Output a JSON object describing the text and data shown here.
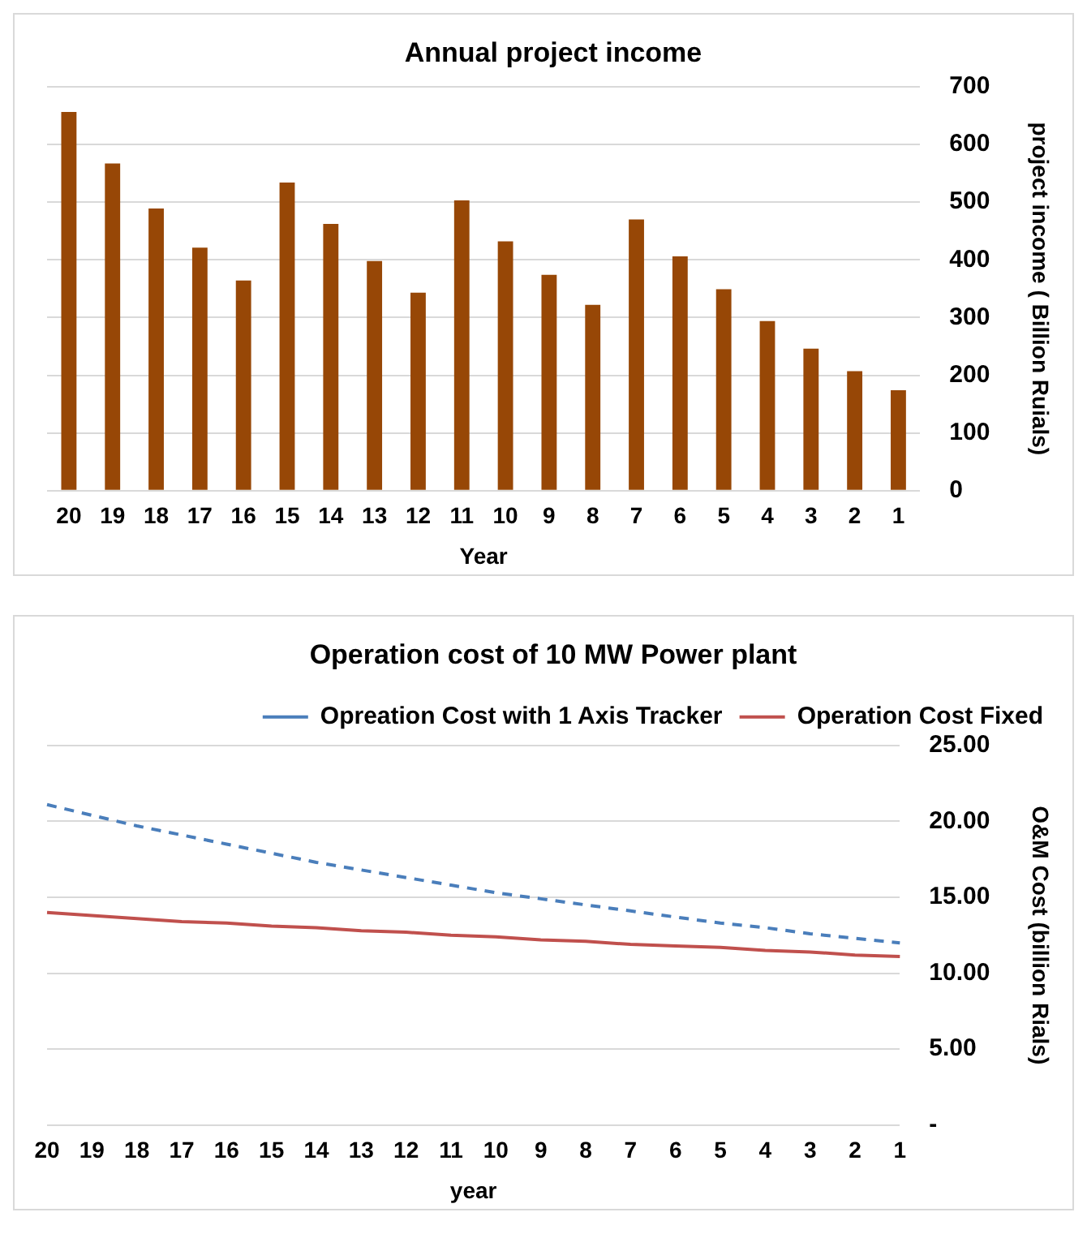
{
  "chart_data": [
    {
      "type": "bar",
      "title": "Annual project income",
      "xlabel": "Year",
      "ylabel": "project income ( Billion Ruials)",
      "categories": [
        "20",
        "19",
        "18",
        "17",
        "16",
        "15",
        "14",
        "13",
        "12",
        "11",
        "10",
        "9",
        "8",
        "7",
        "6",
        "5",
        "4",
        "3",
        "2",
        "1"
      ],
      "series": [
        {
          "color": "#974706",
          "values": [
            656,
            567,
            489,
            421,
            364,
            534,
            462,
            398,
            343,
            503,
            432,
            374,
            322,
            470,
            406,
            349,
            294,
            246,
            207,
            174
          ]
        }
      ],
      "ylim": [
        0,
        700
      ],
      "yticks": [
        0,
        100,
        200,
        300,
        400,
        500,
        600,
        700
      ],
      "grid": "y",
      "legend": false
    },
    {
      "type": "line",
      "title": "Operation cost of 10 MW Power plant",
      "xlabel": "year",
      "ylabel": "O&M Cost (billion Rials)",
      "categories": [
        "20",
        "19",
        "18",
        "17",
        "16",
        "15",
        "14",
        "13",
        "12",
        "11",
        "10",
        "9",
        "8",
        "7",
        "6",
        "5",
        "4",
        "3",
        "2",
        "1"
      ],
      "series": [
        {
          "name": "Opreation Cost with 1 Axis Tracker",
          "color": "#4a7ebb",
          "line_style": "dashed",
          "values": [
            21.1,
            20.4,
            19.7,
            19.1,
            18.5,
            17.9,
            17.3,
            16.8,
            16.3,
            15.8,
            15.3,
            14.9,
            14.5,
            14.1,
            13.7,
            13.3,
            13.0,
            12.6,
            12.3,
            12.0
          ]
        },
        {
          "name": "Operation Cost Fixed",
          "color": "#c0504d",
          "line_style": "solid",
          "values": [
            14.0,
            13.8,
            13.6,
            13.4,
            13.3,
            13.1,
            13.0,
            12.8,
            12.7,
            12.5,
            12.4,
            12.2,
            12.1,
            11.9,
            11.8,
            11.7,
            11.5,
            11.4,
            11.2,
            11.1
          ]
        }
      ],
      "ylim": [
        0,
        25
      ],
      "yticks": [
        {
          "value": 0,
          "label": "-"
        },
        {
          "value": 5,
          "label": "5.00"
        },
        {
          "value": 10,
          "label": "10.00"
        },
        {
          "value": 15,
          "label": "15.00"
        },
        {
          "value": 20,
          "label": "20.00"
        },
        {
          "value": 25,
          "label": "25.00"
        }
      ],
      "grid": "y",
      "legend": "top right",
      "marker": "none"
    }
  ]
}
